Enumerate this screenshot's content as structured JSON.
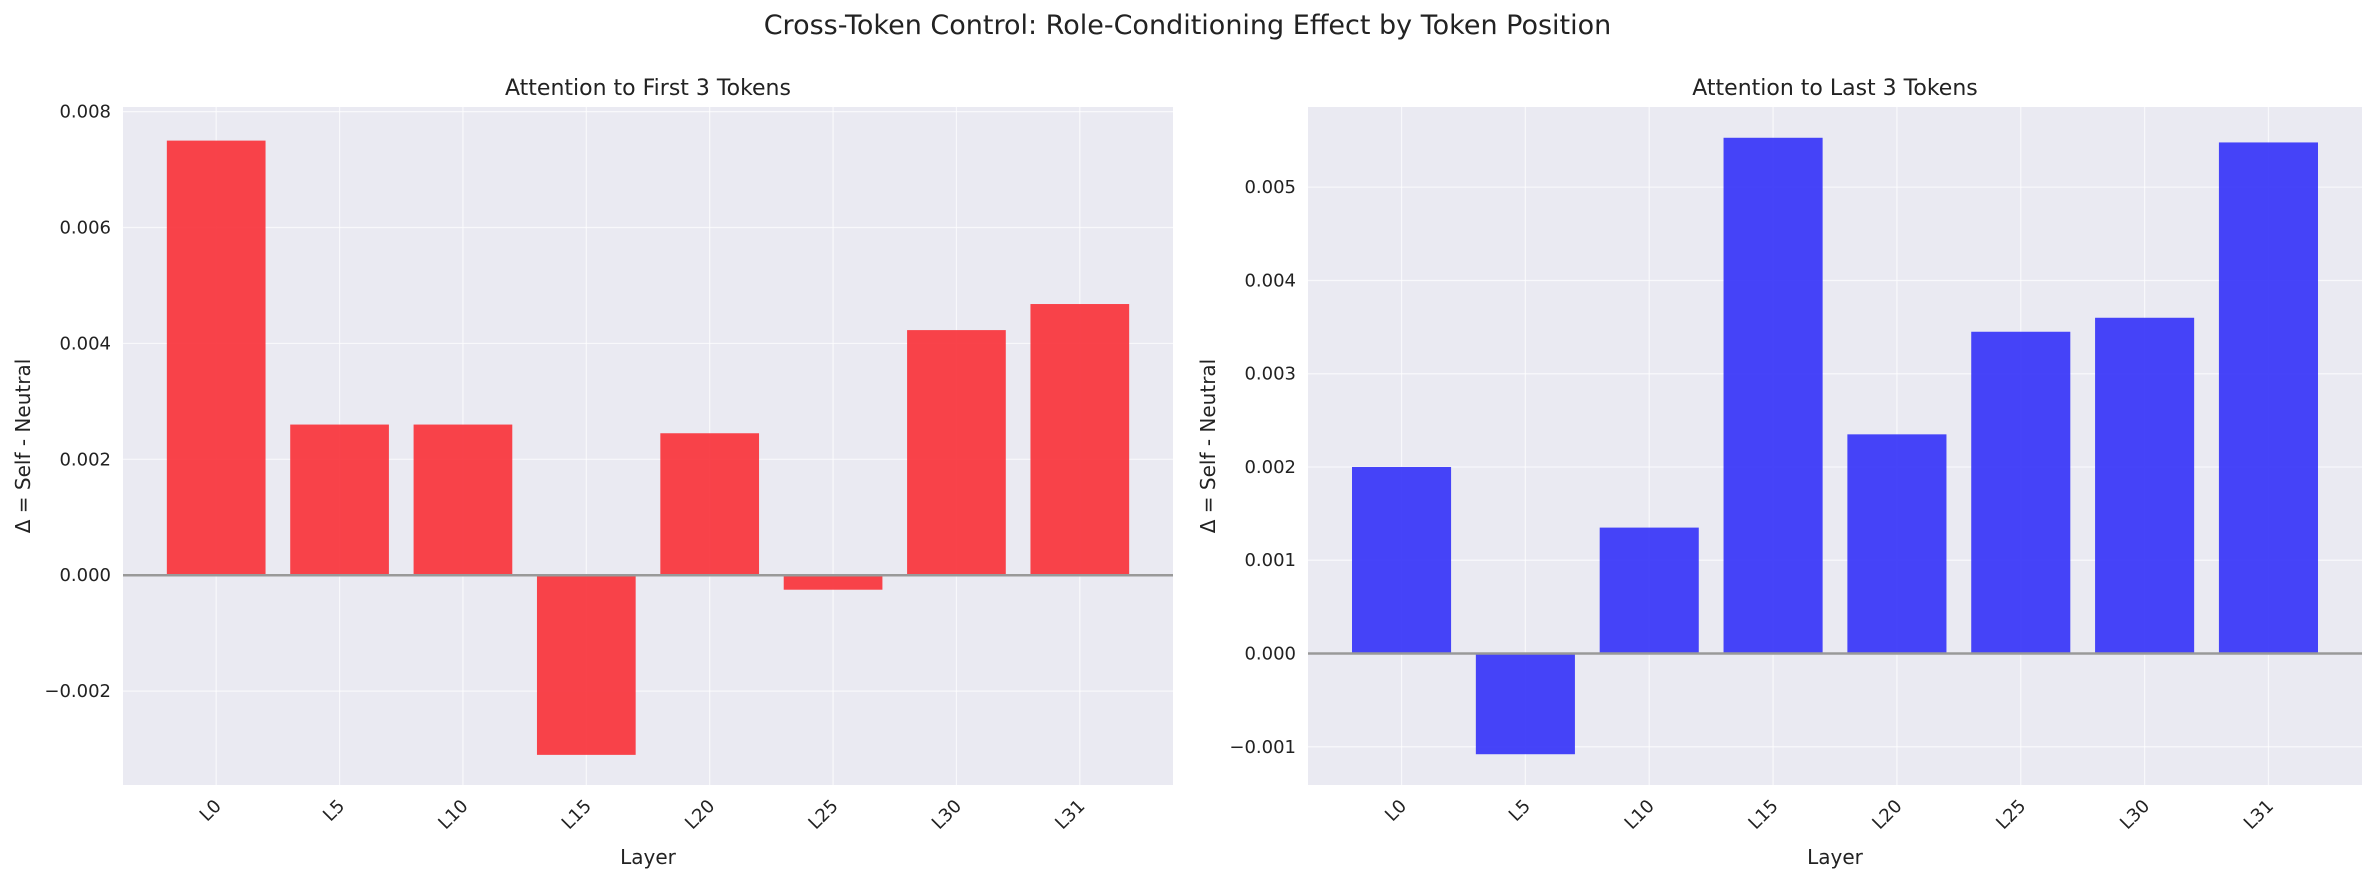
{
  "figure": {
    "title": "Cross-Token Control: Role-Conditioning Effect by Token Position"
  },
  "colors": {
    "background": "#eaeaf2",
    "grid": "#ffffff",
    "text": "#222222",
    "zero_line": "#999999",
    "first_series": "#f8333b",
    "last_series": "#3634f8"
  },
  "chart_data": [
    {
      "type": "bar",
      "title": "Attention to First 3 Tokens",
      "xlabel": "Layer",
      "ylabel": "Δ = Self - Neutral",
      "categories": [
        "L0",
        "L5",
        "L10",
        "L15",
        "L20",
        "L25",
        "L30",
        "L31"
      ],
      "values": [
        0.0075,
        0.0026,
        0.0026,
        -0.0031,
        0.00245,
        -0.00025,
        0.00423,
        0.00468
      ],
      "ylim": [
        -0.00362,
        0.00808
      ],
      "yticks": [
        -0.002,
        0.0,
        0.002,
        0.004,
        0.006,
        0.008
      ],
      "ytick_labels": [
        "−0.002",
        "0.000",
        "0.002",
        "0.004",
        "0.006",
        "0.008"
      ],
      "grid": true,
      "color": "#f8333b"
    },
    {
      "type": "bar",
      "title": "Attention to Last 3 Tokens",
      "xlabel": "Layer",
      "ylabel": "Δ = Self - Neutral",
      "categories": [
        "L0",
        "L5",
        "L10",
        "L15",
        "L20",
        "L25",
        "L30",
        "L31"
      ],
      "values": [
        0.002,
        -0.00108,
        0.00135,
        0.00553,
        0.00235,
        0.00345,
        0.0036,
        0.00548
      ],
      "ylim": [
        -0.00141,
        0.00586
      ],
      "yticks": [
        -0.001,
        0.0,
        0.001,
        0.002,
        0.003,
        0.004,
        0.005
      ],
      "ytick_labels": [
        "−0.001",
        "0.000",
        "0.001",
        "0.002",
        "0.003",
        "0.004",
        "0.005"
      ],
      "grid": true,
      "color": "#3634f8"
    }
  ]
}
